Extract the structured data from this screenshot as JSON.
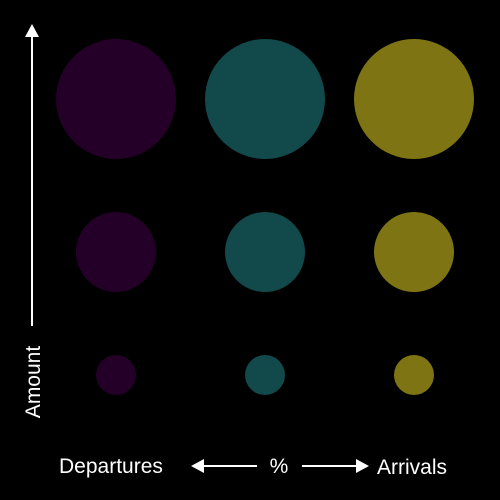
{
  "chart_data": {
    "type": "scatter",
    "title": "",
    "x_axis": {
      "left_label": "Departures",
      "center_label": "%",
      "right_label": "Arrivals",
      "levels": 3
    },
    "y_axis": {
      "label": "Amount",
      "levels": 3
    },
    "colors": [
      "#240028",
      "#12494a",
      "#7f7414"
    ],
    "grid": false,
    "legend": "none",
    "points": [
      {
        "col": 0,
        "row": 0,
        "size": 1.0
      },
      {
        "col": 1,
        "row": 0,
        "size": 1.0
      },
      {
        "col": 2,
        "row": 0,
        "size": 1.0
      },
      {
        "col": 0,
        "row": 1,
        "size": 2.0
      },
      {
        "col": 1,
        "row": 1,
        "size": 2.0
      },
      {
        "col": 2,
        "row": 1,
        "size": 2.0
      },
      {
        "col": 0,
        "row": 2,
        "size": 3.0
      },
      {
        "col": 1,
        "row": 2,
        "size": 3.0
      },
      {
        "col": 2,
        "row": 2,
        "size": 3.0
      }
    ]
  }
}
